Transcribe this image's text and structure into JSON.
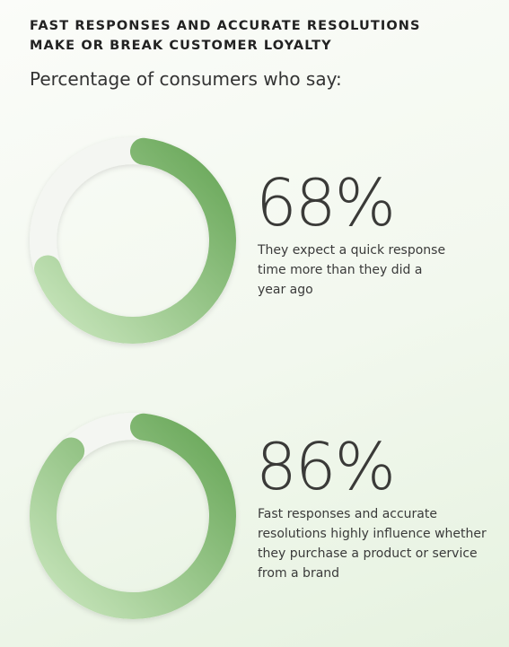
{
  "header": {
    "title": "FAST RESPONSES AND ACCURATE RESOLUTIONS MAKE OR BREAK CUSTOMER LOYALTY",
    "subtitle": "Percentage of consumers who say:"
  },
  "chart_data": [
    {
      "type": "donut",
      "values": [
        68
      ],
      "value_labels": [
        "68%"
      ],
      "ylim": [
        0,
        100
      ],
      "color": "#6fae5f",
      "annotation": "They expect a quick response time more than they did a year ago"
    },
    {
      "type": "donut",
      "values": [
        86
      ],
      "value_labels": [
        "86%"
      ],
      "ylim": [
        0,
        100
      ],
      "color": "#6fae5f",
      "annotation": "Fast responses and accurate resolutions highly influence whether they purchase a product or service from a brand"
    }
  ]
}
